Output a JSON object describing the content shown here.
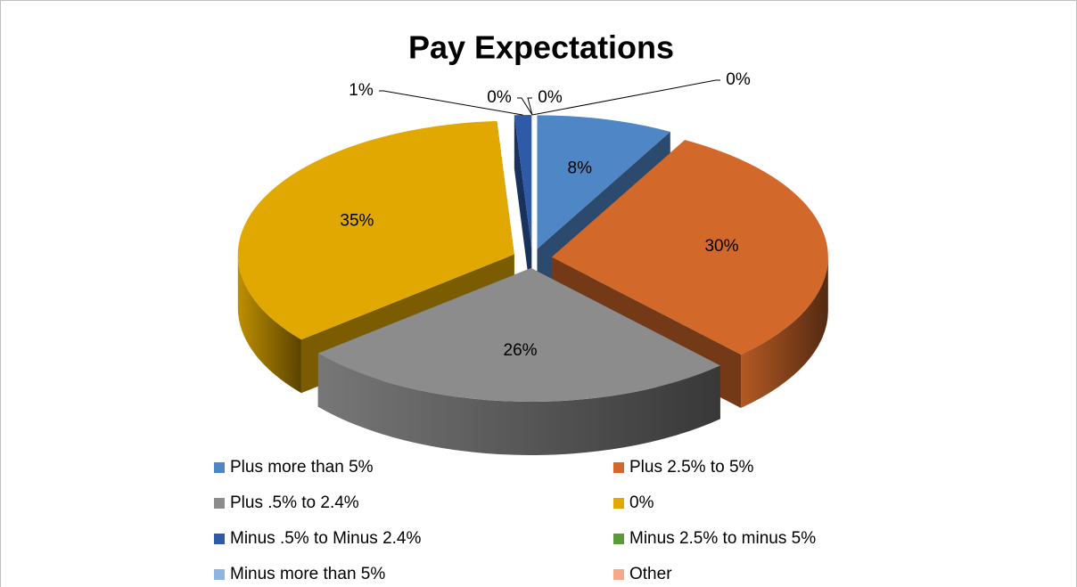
{
  "chart_data": {
    "type": "pie",
    "title": "Pay Expectations",
    "categories": [
      "Plus more than 5%",
      "Plus 2.5% to 5%",
      "Plus .5% to 2.4%",
      "0%",
      "Minus .5% to Minus 2.4%",
      "Minus 2.5% to minus 5%",
      "Minus more than 5%",
      "Other"
    ],
    "values": [
      8,
      30,
      26,
      35,
      1,
      0,
      0,
      0
    ],
    "value_labels": [
      "8%",
      "30%",
      "26%",
      "35%",
      "1%",
      "0%",
      "0%",
      "0%"
    ],
    "colors": [
      "#4f86c6",
      "#d2692a",
      "#8c8c8c",
      "#e0a800",
      "#2e5aa8",
      "#5a9a3a",
      "#8fb4e3",
      "#f4a989"
    ],
    "legend": "bottom"
  }
}
